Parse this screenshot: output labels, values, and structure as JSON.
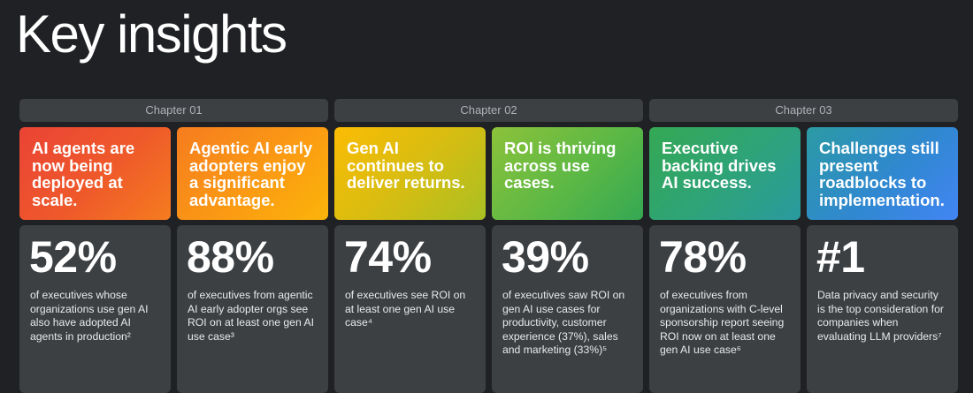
{
  "page": {
    "title": "Key insights"
  },
  "chapters": [
    {
      "label": "Chapter 01"
    },
    {
      "label": "Chapter 02"
    },
    {
      "label": "Chapter 03"
    }
  ],
  "cards": [
    {
      "headline": "AI agents are now being deployed at scale.",
      "stat": "52%",
      "description": "of executives whose organizations use gen AI also have adopted AI agents in production²",
      "accent": "#ea4335"
    },
    {
      "headline": "Agentic AI early adopters enjoy a significant advantage.",
      "stat": "88%",
      "description": "of executives from agentic AI early adopter orgs see ROI on at least one gen AI use case³",
      "accent": "#fbbc04"
    },
    {
      "headline": "Gen AI continues to deliver returns.",
      "stat": "74%",
      "description": "of executives see ROI on at least one gen AI use case⁴",
      "accent": "#c4bf16"
    },
    {
      "headline": "ROI is thriving across use cases.",
      "stat": "39%",
      "description": "of executives saw ROI on gen AI use cases for productivity, customer experience (37%), sales and marketing (33%)⁵",
      "accent": "#34a853"
    },
    {
      "headline": "Executive backing drives AI success.",
      "stat": "78%",
      "description": "of executives from organizations with C-level sponsorship report seeing ROI now on at least one gen AI use case⁶",
      "accent": "#2a9a9f"
    },
    {
      "headline": "Challenges still present roadblocks to implementation.",
      "stat": "#1",
      "description": "Data privacy and security is the top consideration for companies when evaluating LLM providers⁷",
      "accent": "#4285f4"
    }
  ]
}
